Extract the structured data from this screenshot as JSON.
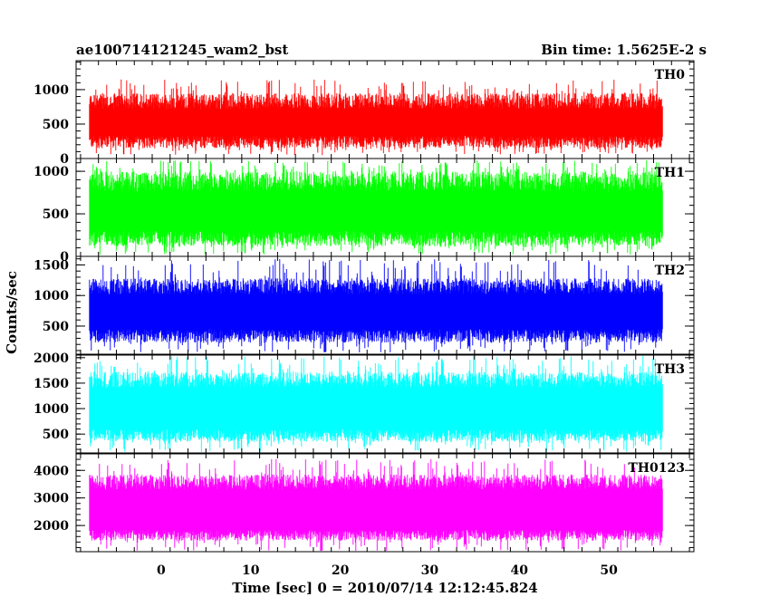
{
  "header": {
    "title": "ae100714121245_wam2_bst",
    "bin_time": "Bin time: 1.5625E-2 s"
  },
  "chart_data": {
    "type": "line",
    "xlabel": "Time [sec] 0 = 2010/07/14 12:12:45.824",
    "ylabel": "Counts/sec",
    "xlim": [
      -9.5,
      59.5
    ],
    "x_range_data": [
      -8,
      56
    ],
    "x_ticks": [
      0,
      10,
      20,
      30,
      40,
      50
    ],
    "x_tick_labels": [
      "0",
      "10",
      "20",
      "30",
      "40",
      "50"
    ],
    "panels": [
      {
        "name": "TH0",
        "color": "#ff0000",
        "ylim": [
          0,
          1420
        ],
        "y_ticks": [
          0,
          500,
          1000
        ],
        "y_tick_labels": [
          "0",
          "500",
          "1000"
        ],
        "band_low": [
          150,
          330
        ],
        "band_high": [
          720,
          950
        ],
        "spike_low": 50,
        "spike_high": 1150
      },
      {
        "name": "TH1",
        "color": "#00ff00",
        "ylim": [
          0,
          1150
        ],
        "y_ticks": [
          0,
          500,
          1000
        ],
        "y_tick_labels": [
          "0",
          "500",
          "1000"
        ],
        "band_low": [
          120,
          300
        ],
        "band_high": [
          760,
          1000
        ],
        "spike_low": 20,
        "spike_high": 1130
      },
      {
        "name": "TH2",
        "color": "#0000ff",
        "ylim": [
          40,
          1640
        ],
        "y_ticks": [
          500,
          1000,
          1500
        ],
        "y_tick_labels": [
          "500",
          "1000",
          "1500"
        ],
        "band_low": [
          230,
          450
        ],
        "band_high": [
          1020,
          1280
        ],
        "spike_low": 70,
        "spike_high": 1600
      },
      {
        "name": "TH3",
        "color": "#00ffff",
        "ylim": [
          130,
          2050
        ],
        "y_ticks": [
          500,
          1000,
          1500,
          2000
        ],
        "y_tick_labels": [
          "500",
          "1000",
          "1500",
          "2000"
        ],
        "band_low": [
          350,
          600
        ],
        "band_high": [
          1400,
          1720
        ],
        "spike_low": 150,
        "spike_high": 2040
      },
      {
        "name": "TH0123",
        "color": "#ff00ff",
        "ylim": [
          1050,
          4600
        ],
        "y_ticks": [
          2000,
          3000,
          4000
        ],
        "y_tick_labels": [
          "2000",
          "3000",
          "4000"
        ],
        "band_low": [
          1450,
          1850
        ],
        "band_high": [
          3300,
          3850
        ],
        "spike_low": 1080,
        "spike_high": 4420
      }
    ]
  }
}
